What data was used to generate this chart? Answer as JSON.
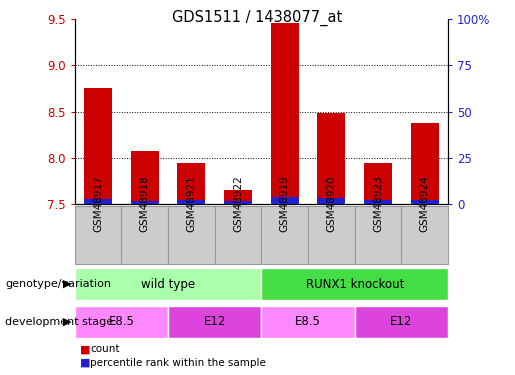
{
  "title": "GDS1511 / 1438077_at",
  "samples": [
    "GSM48917",
    "GSM48918",
    "GSM48921",
    "GSM48922",
    "GSM48919",
    "GSM48920",
    "GSM48923",
    "GSM48924"
  ],
  "count_values": [
    8.75,
    8.08,
    7.95,
    7.65,
    9.45,
    8.48,
    7.95,
    8.38
  ],
  "percentile_values": [
    3.0,
    2.0,
    2.5,
    2.0,
    4.0,
    3.5,
    2.5,
    2.5
  ],
  "ylim_left": [
    7.5,
    9.5
  ],
  "ylim_right": [
    0,
    100
  ],
  "yticks_left": [
    7.5,
    8.0,
    8.5,
    9.0,
    9.5
  ],
  "yticks_right": [
    0,
    25,
    50,
    75,
    100
  ],
  "ytick_labels_right": [
    "0",
    "25",
    "50",
    "75",
    "100%"
  ],
  "bar_color_count": "#cc0000",
  "bar_color_pct": "#2222cc",
  "bar_width": 0.6,
  "grid_color": "black",
  "genotype_groups": [
    {
      "label": "wild type",
      "start": 0,
      "end": 4,
      "color": "#aaffaa"
    },
    {
      "label": "RUNX1 knockout",
      "start": 4,
      "end": 8,
      "color": "#44dd44"
    }
  ],
  "dev_stage_groups": [
    {
      "label": "E8.5",
      "start": 0,
      "end": 2,
      "color": "#ff88ff"
    },
    {
      "label": "E12",
      "start": 2,
      "end": 4,
      "color": "#dd44dd"
    },
    {
      "label": "E8.5",
      "start": 4,
      "end": 6,
      "color": "#ff88ff"
    },
    {
      "label": "E12",
      "start": 6,
      "end": 8,
      "color": "#dd44dd"
    }
  ],
  "sample_box_color": "#cccccc",
  "sample_box_edge": "#999999",
  "label_genotype": "genotype/variation",
  "label_devstage": "development stage",
  "legend_count": "count",
  "legend_pct": "percentile rank within the sample",
  "tick_label_color_left": "#cc0000",
  "tick_label_color_right": "#2222cc",
  "background_color": "#ffffff"
}
